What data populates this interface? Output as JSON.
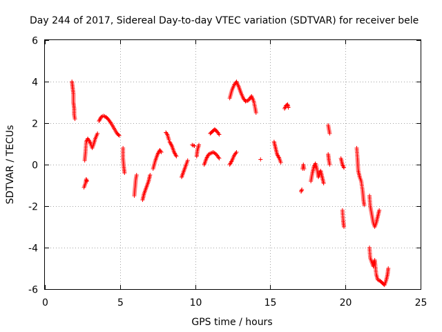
{
  "chart_data": {
    "type": "scatter",
    "title": "Day 244 of 2017, Sidereal Day-to-day VTEC variation (SDTVAR) for receiver bele",
    "xlabel": "GPS time / hours",
    "ylabel": "SDTVAR / TECUs",
    "xlim": [
      0,
      25
    ],
    "ylim": [
      -6,
      6
    ],
    "xticks": [
      0,
      5,
      10,
      15,
      20,
      25
    ],
    "xtick_labels": [
      "0",
      "5",
      "10",
      "15",
      "20",
      "25"
    ],
    "yticks": [
      -6,
      -4,
      -2,
      0,
      2,
      4,
      6
    ],
    "ytick_labels": [
      "-6",
      "-4",
      "-2",
      "0",
      "2",
      "4",
      "6"
    ],
    "grid": true,
    "marker": "plus",
    "color": "#ff0000",
    "series": [
      {
        "name": "SDTVAR",
        "segments": [
          [
            [
              1.8,
              4.0
            ],
            [
              1.85,
              3.7
            ],
            [
              1.9,
              3.4
            ],
            [
              1.9,
              3.0
            ],
            [
              1.95,
              2.7
            ],
            [
              1.95,
              2.4
            ],
            [
              2.0,
              2.2
            ]
          ],
          [
            [
              2.6,
              -1.1
            ],
            [
              2.7,
              -0.9
            ],
            [
              2.75,
              -0.7
            ],
            [
              2.8,
              -0.8
            ]
          ],
          [
            [
              2.65,
              0.2
            ],
            [
              2.7,
              0.6
            ],
            [
              2.75,
              1.1
            ],
            [
              2.85,
              1.25
            ],
            [
              2.95,
              1.15
            ],
            [
              3.05,
              1.0
            ],
            [
              3.15,
              0.8
            ],
            [
              3.25,
              1.0
            ],
            [
              3.35,
              1.25
            ],
            [
              3.5,
              1.5
            ]
          ],
          [
            [
              3.6,
              2.1
            ],
            [
              3.75,
              2.3
            ],
            [
              3.9,
              2.35
            ],
            [
              4.05,
              2.3
            ],
            [
              4.2,
              2.2
            ],
            [
              4.4,
              2.0
            ],
            [
              4.6,
              1.75
            ],
            [
              4.8,
              1.5
            ],
            [
              4.95,
              1.4
            ]
          ],
          [
            [
              5.2,
              0.8
            ],
            [
              5.2,
              0.3
            ],
            [
              5.25,
              -0.1
            ],
            [
              5.3,
              -0.4
            ]
          ],
          [
            [
              5.95,
              -1.5
            ],
            [
              6.0,
              -1.1
            ],
            [
              6.05,
              -0.7
            ],
            [
              6.1,
              -0.5
            ]
          ],
          [
            [
              6.5,
              -1.7
            ],
            [
              6.6,
              -1.4
            ],
            [
              6.75,
              -1.1
            ],
            [
              6.9,
              -0.8
            ],
            [
              7.0,
              -0.5
            ]
          ],
          [
            [
              7.2,
              -0.2
            ],
            [
              7.35,
              0.2
            ],
            [
              7.5,
              0.5
            ],
            [
              7.65,
              0.7
            ],
            [
              7.75,
              0.6
            ]
          ],
          [
            [
              8.05,
              1.55
            ],
            [
              8.15,
              1.45
            ],
            [
              8.25,
              1.2
            ]
          ],
          [
            [
              8.3,
              1.1
            ],
            [
              8.45,
              0.9
            ],
            [
              8.6,
              0.6
            ],
            [
              8.75,
              0.4
            ]
          ],
          [
            [
              9.1,
              -0.6
            ],
            [
              9.25,
              -0.3
            ],
            [
              9.4,
              0.0
            ],
            [
              9.5,
              0.2
            ]
          ],
          [
            [
              9.8,
              0.95
            ],
            [
              9.95,
              0.9
            ]
          ],
          [
            [
              10.1,
              0.4
            ],
            [
              10.15,
              0.7
            ],
            [
              10.25,
              0.95
            ]
          ],
          [
            [
              10.6,
              0.0
            ],
            [
              10.75,
              0.3
            ],
            [
              10.9,
              0.5
            ],
            [
              11.05,
              0.55
            ],
            [
              11.2,
              0.6
            ],
            [
              11.4,
              0.5
            ],
            [
              11.6,
              0.3
            ]
          ],
          [
            [
              11.0,
              1.5
            ],
            [
              11.15,
              1.6
            ],
            [
              11.3,
              1.7
            ],
            [
              11.45,
              1.6
            ],
            [
              11.6,
              1.45
            ]
          ],
          [
            [
              12.3,
              0.0
            ],
            [
              12.45,
              0.2
            ],
            [
              12.6,
              0.45
            ],
            [
              12.75,
              0.6
            ]
          ],
          [
            [
              12.3,
              3.2
            ],
            [
              12.45,
              3.6
            ],
            [
              12.6,
              3.85
            ],
            [
              12.75,
              4.0
            ],
            [
              12.9,
              3.75
            ],
            [
              13.05,
              3.45
            ],
            [
              13.2,
              3.2
            ],
            [
              13.35,
              3.05
            ],
            [
              13.55,
              3.1
            ],
            [
              13.75,
              3.3
            ],
            [
              13.9,
              3.05
            ],
            [
              14.0,
              2.7
            ],
            [
              14.05,
              2.5
            ]
          ],
          [
            [
              14.35,
              0.25
            ]
          ],
          [
            [
              15.25,
              1.1
            ],
            [
              15.35,
              0.8
            ],
            [
              15.45,
              0.5
            ],
            [
              15.6,
              0.3
            ],
            [
              15.7,
              0.1
            ]
          ],
          [
            [
              15.95,
              2.7
            ],
            [
              16.05,
              2.85
            ],
            [
              16.15,
              2.9
            ],
            [
              16.2,
              2.75
            ]
          ],
          [
            [
              17.05,
              -1.3
            ],
            [
              17.1,
              -1.2
            ]
          ],
          [
            [
              17.15,
              -0.2
            ],
            [
              17.2,
              0.0
            ],
            [
              17.25,
              -0.2
            ]
          ],
          [
            [
              17.7,
              -0.8
            ],
            [
              17.8,
              -0.4
            ],
            [
              17.9,
              -0.1
            ],
            [
              18.0,
              0.05
            ],
            [
              18.1,
              -0.2
            ],
            [
              18.2,
              -0.6
            ],
            [
              18.35,
              -0.3
            ],
            [
              18.45,
              -0.6
            ],
            [
              18.55,
              -0.9
            ]
          ],
          [
            [
              18.85,
              1.9
            ],
            [
              18.9,
              1.7
            ],
            [
              18.95,
              1.5
            ]
          ],
          [
            [
              18.85,
              0.5
            ],
            [
              18.9,
              0.2
            ],
            [
              18.95,
              0.0
            ]
          ],
          [
            [
              19.7,
              0.3
            ],
            [
              19.8,
              0.0
            ],
            [
              19.9,
              -0.15
            ]
          ],
          [
            [
              19.8,
              -2.2
            ],
            [
              19.85,
              -2.7
            ],
            [
              19.9,
              -3.0
            ]
          ],
          [
            [
              20.75,
              0.8
            ],
            [
              20.8,
              0.3
            ],
            [
              20.85,
              -0.3
            ],
            [
              20.95,
              -0.6
            ],
            [
              21.05,
              -0.8
            ],
            [
              21.15,
              -1.3
            ],
            [
              21.2,
              -1.7
            ],
            [
              21.25,
              -1.95
            ]
          ],
          [
            [
              21.6,
              -1.5
            ],
            [
              21.65,
              -2.0
            ],
            [
              21.75,
              -2.4
            ],
            [
              21.85,
              -2.8
            ],
            [
              21.95,
              -3.0
            ],
            [
              22.05,
              -2.8
            ],
            [
              22.15,
              -2.5
            ],
            [
              22.25,
              -2.2
            ]
          ],
          [
            [
              21.6,
              -4.0
            ],
            [
              21.65,
              -4.5
            ],
            [
              21.75,
              -4.7
            ],
            [
              21.85,
              -4.9
            ],
            [
              21.95,
              -4.6
            ],
            [
              22.05,
              -5.3
            ],
            [
              22.15,
              -5.55
            ],
            [
              22.3,
              -5.6
            ],
            [
              22.45,
              -5.7
            ],
            [
              22.6,
              -5.8
            ],
            [
              22.7,
              -5.6
            ],
            [
              22.8,
              -5.3
            ],
            [
              22.85,
              -5.0
            ]
          ]
        ]
      }
    ]
  }
}
